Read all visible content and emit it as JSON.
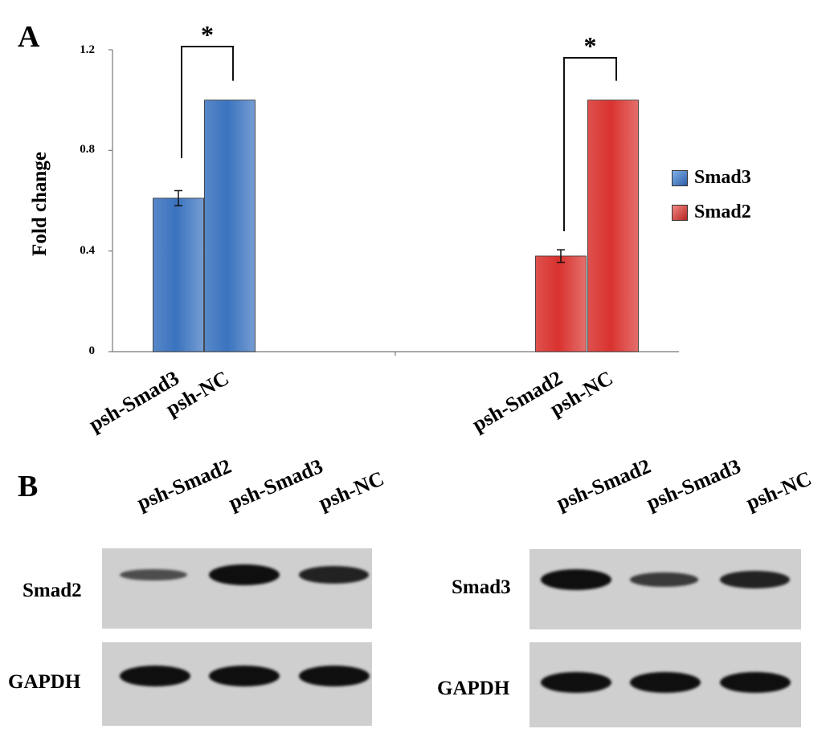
{
  "panels": {
    "a_label": "A",
    "b_label": "B"
  },
  "chart_data": {
    "type": "bar",
    "ylabel": "Fold change",
    "ylim": [
      0,
      1.2
    ],
    "yticks": [
      "0",
      "0.4",
      "0.8",
      "1.2"
    ],
    "categories": [
      "psh-Smad3",
      "psh-NC",
      "psh-Smad2",
      "psh-NC"
    ],
    "series": [
      {
        "name": "Smad3",
        "color": "#3a73bf",
        "values": [
          0.61,
          1.0,
          null,
          null
        ],
        "errors": [
          0.03,
          null,
          null,
          null
        ]
      },
      {
        "name": "Smad2",
        "color": "#d9322e",
        "values": [
          null,
          null,
          0.38,
          1.0
        ],
        "errors": [
          null,
          null,
          0.025,
          null
        ]
      }
    ],
    "significance": [
      {
        "between": [
          "psh-Smad3",
          "psh-NC"
        ],
        "mark": "*"
      },
      {
        "between": [
          "psh-Smad2",
          "psh-NC"
        ],
        "mark": "*"
      }
    ],
    "legend": [
      "Smad3",
      "Smad2"
    ],
    "legend_position": "right",
    "grid": false
  },
  "western_blot": {
    "left": {
      "lanes": [
        "psh-Smad2",
        "psh-Smad3",
        "psh-NC"
      ],
      "rows": [
        "Smad2",
        "GAPDH"
      ],
      "band_intensity": {
        "Smad2": [
          0.35,
          1.0,
          0.8
        ],
        "GAPDH": [
          1.0,
          1.0,
          1.0
        ]
      }
    },
    "right": {
      "lanes": [
        "psh-Smad2",
        "psh-Smad3",
        "psh-NC"
      ],
      "rows": [
        "Smad3",
        "GAPDH"
      ],
      "band_intensity": {
        "Smad3": [
          1.0,
          0.55,
          0.8
        ],
        "GAPDH": [
          1.0,
          1.0,
          1.0
        ]
      }
    }
  }
}
